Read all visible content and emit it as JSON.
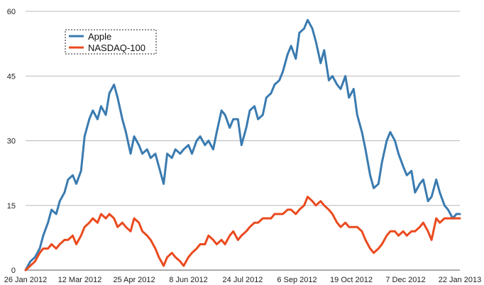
{
  "chart_data": {
    "type": "line",
    "title": "",
    "xlabel": "",
    "ylabel": "",
    "x_tick_labels": [
      "26 Jan 2012",
      "12 Mar 2012",
      "25 Apr 2012",
      "8 Jun 2012",
      "24 Jul 2012",
      "6 Sep 2012",
      "19 Oct 2012",
      "7 Dec 2012",
      "22 Jan 2013"
    ],
    "y_ticks": [
      0,
      15,
      30,
      45,
      60
    ],
    "ylim": [
      0,
      60
    ],
    "xlim": [
      "2012-01-26",
      "2013-01-28"
    ],
    "grid": "horizontal",
    "legend_position": "top-left",
    "series": [
      {
        "name": "Apple",
        "color": "#3a7bb0",
        "x": [
          "2012-01-26",
          "2012-01-30",
          "2012-02-03",
          "2012-02-07",
          "2012-02-10",
          "2012-02-14",
          "2012-02-17",
          "2012-02-21",
          "2012-02-24",
          "2012-02-28",
          "2012-03-02",
          "2012-03-06",
          "2012-03-09",
          "2012-03-13",
          "2012-03-16",
          "2012-03-20",
          "2012-03-23",
          "2012-03-27",
          "2012-03-30",
          "2012-04-03",
          "2012-04-06",
          "2012-04-10",
          "2012-04-13",
          "2012-04-17",
          "2012-04-20",
          "2012-04-24",
          "2012-04-27",
          "2012-05-01",
          "2012-05-04",
          "2012-05-08",
          "2012-05-11",
          "2012-05-15",
          "2012-05-18",
          "2012-05-22",
          "2012-05-25",
          "2012-05-29",
          "2012-06-01",
          "2012-06-05",
          "2012-06-08",
          "2012-06-12",
          "2012-06-15",
          "2012-06-19",
          "2012-06-22",
          "2012-06-26",
          "2012-06-29",
          "2012-07-03",
          "2012-07-06",
          "2012-07-10",
          "2012-07-13",
          "2012-07-17",
          "2012-07-20",
          "2012-07-24",
          "2012-07-27",
          "2012-07-31",
          "2012-08-03",
          "2012-08-07",
          "2012-08-10",
          "2012-08-14",
          "2012-08-17",
          "2012-08-21",
          "2012-08-24",
          "2012-08-28",
          "2012-08-31",
          "2012-09-04",
          "2012-09-07",
          "2012-09-11",
          "2012-09-14",
          "2012-09-18",
          "2012-09-21",
          "2012-09-25",
          "2012-09-28",
          "2012-10-02",
          "2012-10-05",
          "2012-10-09",
          "2012-10-12",
          "2012-10-16",
          "2012-10-19",
          "2012-10-23",
          "2012-10-26",
          "2012-10-30",
          "2012-11-02",
          "2012-11-06",
          "2012-11-09",
          "2012-11-13",
          "2012-11-16",
          "2012-11-20",
          "2012-11-23",
          "2012-11-27",
          "2012-11-30",
          "2012-12-04",
          "2012-12-07",
          "2012-12-11",
          "2012-12-14",
          "2012-12-18",
          "2012-12-21",
          "2012-12-25",
          "2012-12-28",
          "2013-01-01",
          "2013-01-04",
          "2013-01-08",
          "2013-01-11",
          "2013-01-15",
          "2013-01-18",
          "2013-01-22",
          "2013-01-25",
          "2013-01-28"
        ],
        "y": [
          0,
          2,
          3,
          5,
          8,
          11,
          14,
          13,
          16,
          18,
          21,
          22,
          20,
          23,
          31,
          35,
          37,
          35,
          38,
          36,
          41,
          43,
          40,
          35,
          32,
          27,
          31,
          29,
          27,
          28,
          26,
          27,
          24,
          20,
          27,
          26,
          28,
          27,
          28,
          29,
          27,
          30,
          31,
          29,
          30,
          28,
          32,
          37,
          36,
          33,
          35,
          35,
          29,
          33,
          37,
          38,
          35,
          36,
          40,
          41,
          43,
          44,
          46,
          50,
          52,
          49,
          55,
          56,
          58,
          56,
          53,
          48,
          51,
          44,
          45,
          43,
          42,
          45,
          40,
          42,
          36,
          32,
          28,
          22,
          19,
          20,
          25,
          30,
          32,
          30,
          27,
          24,
          22,
          23,
          18,
          20,
          21,
          16,
          17,
          21,
          18,
          15,
          14,
          12,
          13,
          13
        ]
      },
      {
        "name": "NASDAQ-100",
        "color": "#ea4a1e",
        "x": [
          "2012-01-26",
          "2012-01-30",
          "2012-02-03",
          "2012-02-07",
          "2012-02-10",
          "2012-02-14",
          "2012-02-17",
          "2012-02-21",
          "2012-02-24",
          "2012-02-28",
          "2012-03-02",
          "2012-03-06",
          "2012-03-09",
          "2012-03-13",
          "2012-03-16",
          "2012-03-20",
          "2012-03-23",
          "2012-03-27",
          "2012-03-30",
          "2012-04-03",
          "2012-04-06",
          "2012-04-10",
          "2012-04-13",
          "2012-04-17",
          "2012-04-20",
          "2012-04-24",
          "2012-04-27",
          "2012-05-01",
          "2012-05-04",
          "2012-05-08",
          "2012-05-11",
          "2012-05-15",
          "2012-05-18",
          "2012-05-22",
          "2012-05-25",
          "2012-05-29",
          "2012-06-01",
          "2012-06-05",
          "2012-06-08",
          "2012-06-12",
          "2012-06-15",
          "2012-06-19",
          "2012-06-22",
          "2012-06-26",
          "2012-06-29",
          "2012-07-03",
          "2012-07-06",
          "2012-07-10",
          "2012-07-13",
          "2012-07-17",
          "2012-07-20",
          "2012-07-24",
          "2012-07-27",
          "2012-07-31",
          "2012-08-03",
          "2012-08-07",
          "2012-08-10",
          "2012-08-14",
          "2012-08-17",
          "2012-08-21",
          "2012-08-24",
          "2012-08-28",
          "2012-08-31",
          "2012-09-04",
          "2012-09-07",
          "2012-09-11",
          "2012-09-14",
          "2012-09-18",
          "2012-09-21",
          "2012-09-25",
          "2012-09-28",
          "2012-10-02",
          "2012-10-05",
          "2012-10-09",
          "2012-10-12",
          "2012-10-16",
          "2012-10-19",
          "2012-10-23",
          "2012-10-26",
          "2012-10-30",
          "2012-11-02",
          "2012-11-06",
          "2012-11-09",
          "2012-11-13",
          "2012-11-16",
          "2012-11-20",
          "2012-11-23",
          "2012-11-27",
          "2012-11-30",
          "2012-12-04",
          "2012-12-07",
          "2012-12-11",
          "2012-12-14",
          "2012-12-18",
          "2012-12-21",
          "2012-12-25",
          "2012-12-28",
          "2013-01-01",
          "2013-01-04",
          "2013-01-08",
          "2013-01-11",
          "2013-01-15",
          "2013-01-18",
          "2013-01-22",
          "2013-01-25",
          "2013-01-28"
        ],
        "y": [
          0,
          1,
          2,
          4,
          5,
          5,
          6,
          5,
          6,
          7,
          7,
          8,
          6,
          8,
          10,
          11,
          12,
          11,
          13,
          12,
          13,
          12,
          10,
          11,
          10,
          9,
          12,
          11,
          9,
          8,
          7,
          5,
          3,
          1,
          3,
          4,
          3,
          2,
          1,
          3,
          4,
          5,
          6,
          6,
          8,
          7,
          6,
          7,
          6,
          8,
          9,
          7,
          8,
          9,
          10,
          11,
          11,
          12,
          12,
          12,
          13,
          13,
          13,
          14,
          14,
          13,
          14,
          15,
          17,
          16,
          15,
          16,
          15,
          14,
          13,
          11,
          10,
          11,
          10,
          10,
          10,
          9,
          7,
          5,
          4,
          5,
          6,
          8,
          9,
          9,
          8,
          9,
          8,
          9,
          9,
          10,
          11,
          9,
          7,
          12,
          11,
          12,
          12,
          12,
          12,
          12
        ]
      }
    ]
  }
}
